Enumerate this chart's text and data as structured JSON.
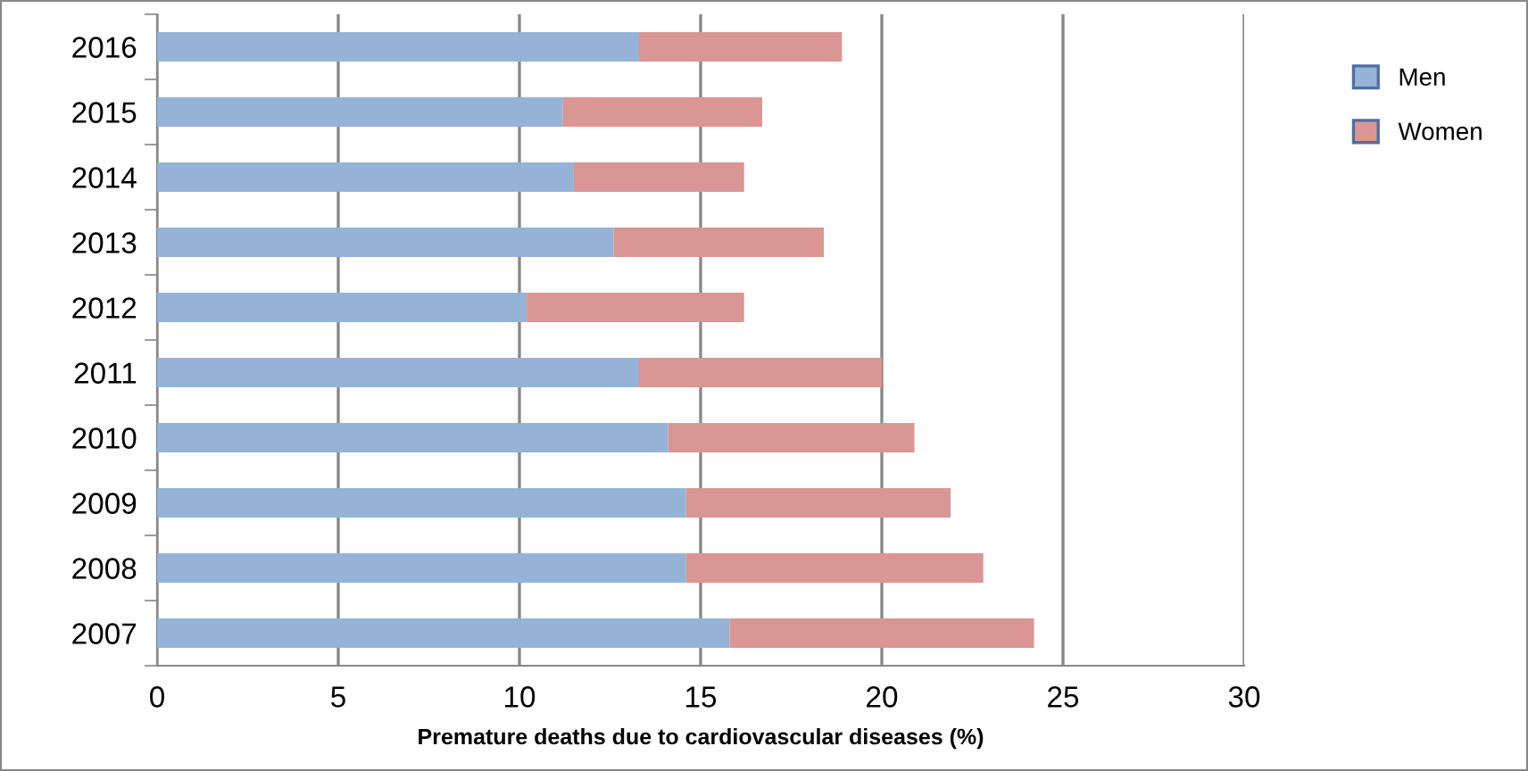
{
  "chart_data": {
    "type": "bar",
    "orientation": "horizontal",
    "stacked": true,
    "xlabel": "Premature deaths due to cardiovascular diseases (%)",
    "categories": [
      "2016",
      "2015",
      "2014",
      "2013",
      "2012",
      "2011",
      "2010",
      "2009",
      "2008",
      "2007"
    ],
    "series": [
      {
        "name": "Men",
        "color": "#95b3d7",
        "values": [
          13.3,
          11.2,
          11.5,
          12.6,
          10.2,
          13.3,
          14.1,
          14.6,
          14.6,
          15.8
        ]
      },
      {
        "name": "Women",
        "color": "#d99694",
        "values": [
          5.6,
          5.5,
          4.7,
          5.8,
          6.0,
          6.7,
          6.8,
          7.3,
          8.2,
          8.4
        ]
      }
    ],
    "xlim": [
      0,
      30
    ],
    "xticks": [
      0,
      5,
      10,
      15,
      20,
      25,
      30
    ],
    "grid": "x",
    "legend": "right"
  }
}
